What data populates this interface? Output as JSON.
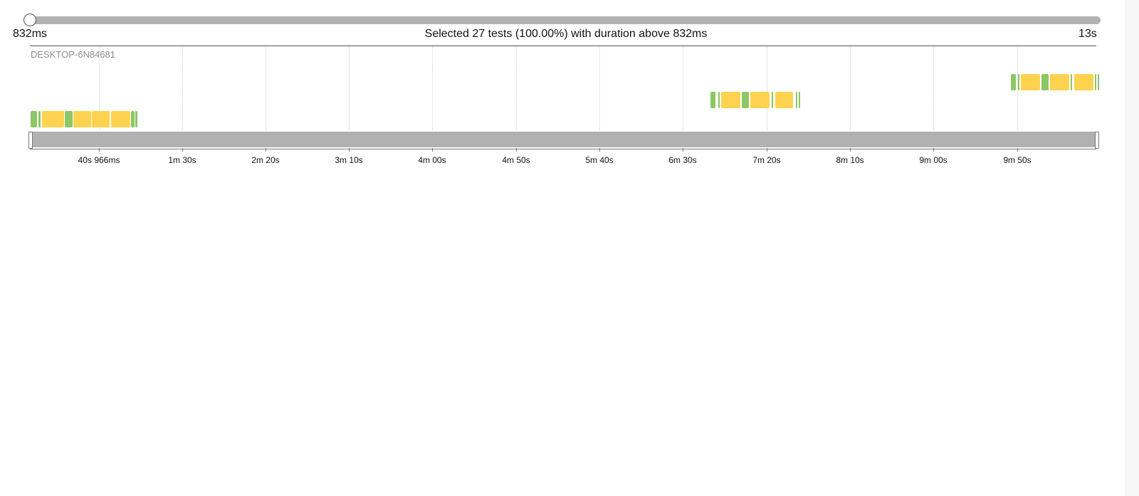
{
  "duration_filter": {
    "min_label": "832ms",
    "max_label": "13s",
    "threshold_position": 0,
    "summary": "Selected 27 tests (100.00%) with duration above 832ms"
  },
  "timeline": {
    "host": "DESKTOP-6N84681",
    "tick_labels": [
      "40s 966ms",
      "1m 30s",
      "2m 20s",
      "3m 10s",
      "4m 00s",
      "4m 50s",
      "5m 40s",
      "6m 30s",
      "7m 20s",
      "8m 10s",
      "9m 00s",
      "9m 50s"
    ],
    "status_colors": {
      "passed": "#8cc665",
      "slow": "#ffd24f",
      "track": "#b1b1b1"
    }
  }
}
